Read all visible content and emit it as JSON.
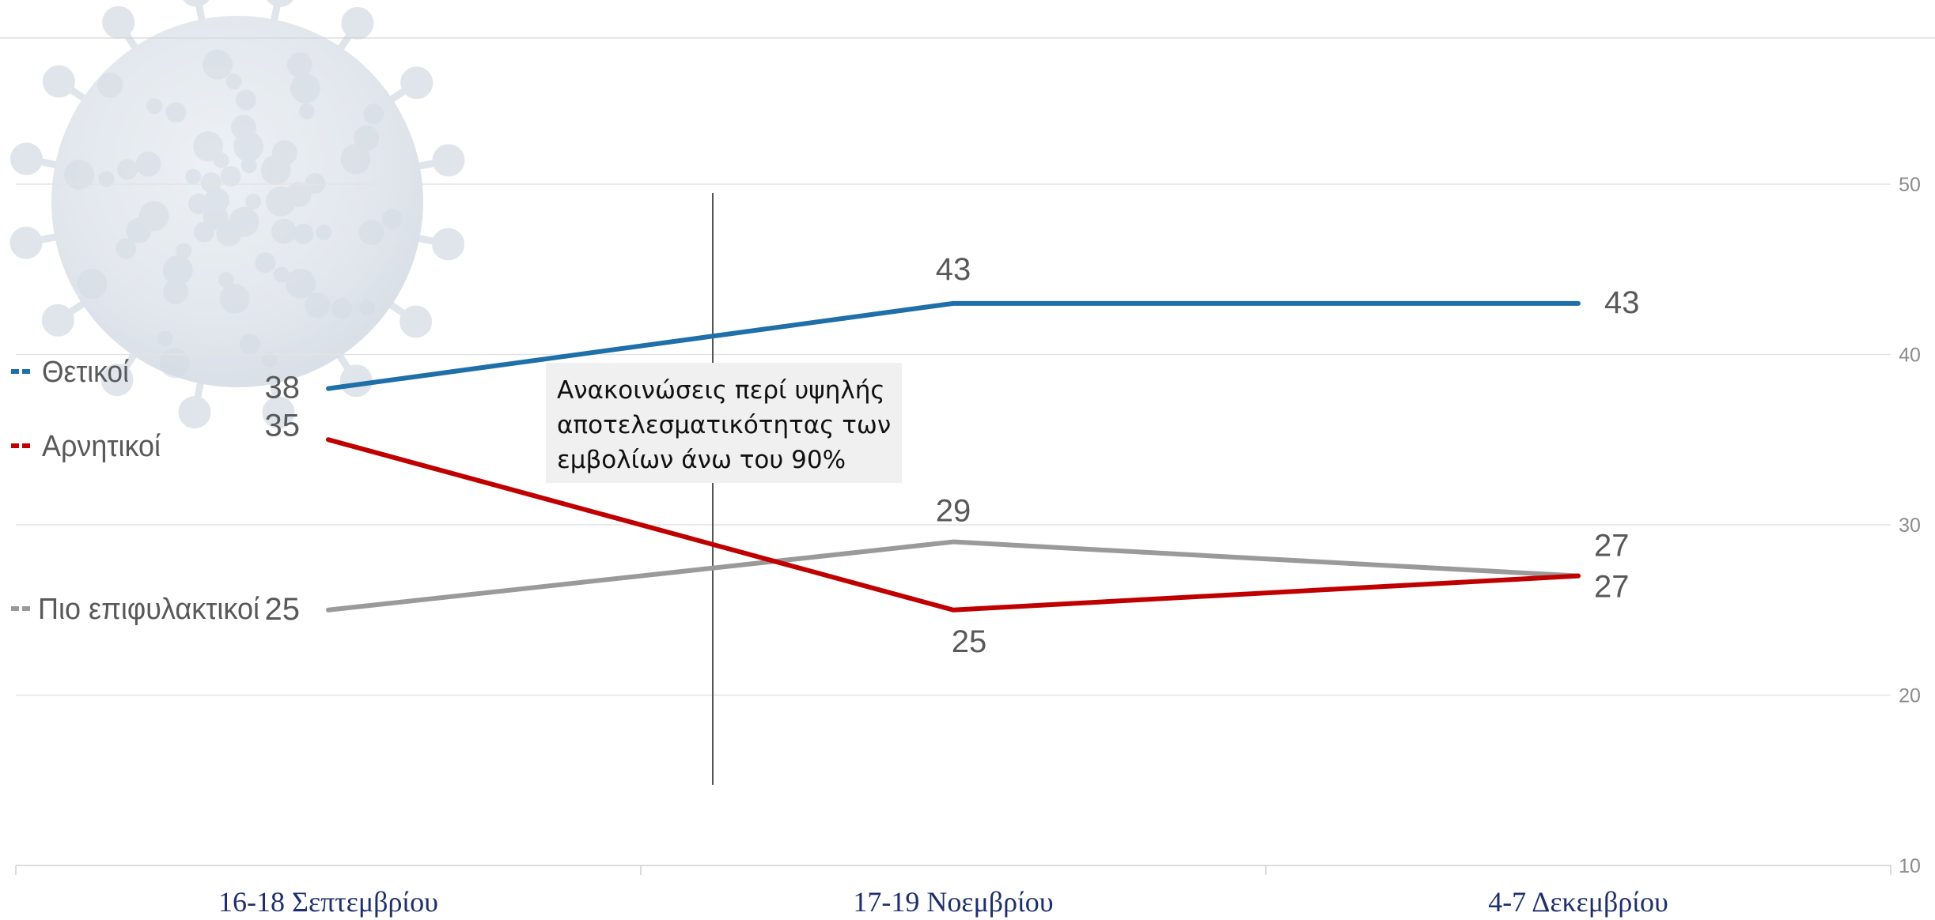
{
  "chart_data": {
    "type": "line",
    "categories": [
      "16-18 Σεπτεμβρίου",
      "17-19 Νοεμβρίου",
      "4-7 Δεκεμβρίου"
    ],
    "series": [
      {
        "name": "Θετικοί",
        "color": "#1f6fa8",
        "values": [
          38,
          43,
          43
        ]
      },
      {
        "name": "Αρνητικοί",
        "color": "#c00000",
        "values": [
          35,
          25,
          27
        ]
      },
      {
        "name": "Πιο επιφυλακτικοί",
        "color": "#9a9a9a",
        "values": [
          25,
          29,
          27
        ]
      }
    ],
    "ylim": [
      10,
      50
    ],
    "yticks": [
      10,
      20,
      30,
      40,
      50
    ],
    "grid": true,
    "legend_position": "left",
    "annotation": {
      "lines": [
        "Ανακοινώσεις περί υψηλής",
        "αποτελεσματικότητας των",
        "εμβολίων άνω του 90%"
      ],
      "marker": "vertical line between 16-18 Σεπτεμβρίου and 17-19 Νοεμβρίου"
    },
    "background_image": "coronavirus-illustration"
  }
}
